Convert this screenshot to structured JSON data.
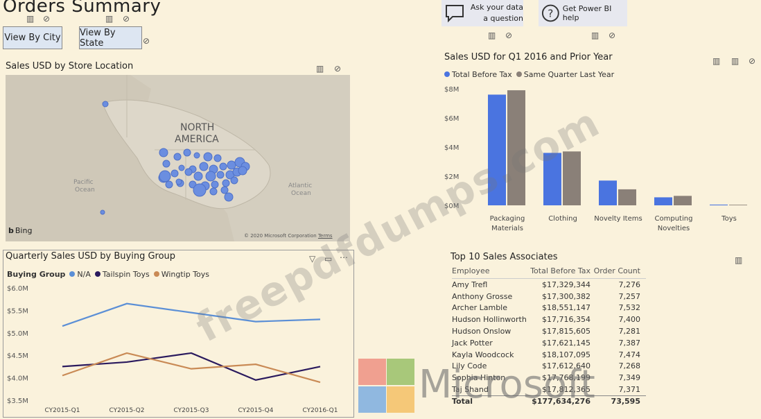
{
  "header": {
    "title": "Orders Summary",
    "view_by_city": "View By City",
    "view_by_state": "View By State",
    "ask_question": "Ask your data a question",
    "get_help": "Get Power BI help"
  },
  "map": {
    "title": "Sales USD by Store Location",
    "region_label_1": "NORTH",
    "region_label_2": "AMERICA",
    "pacific_1": "Pacific",
    "pacific_2": "Ocean",
    "atlantic_1": "Atlantic",
    "atlantic_2": "Ocean",
    "bing": "Bing",
    "copyright": "© 2020 Microsoft Corporation",
    "terms": "Terms"
  },
  "bar_chart": {
    "title": "Sales USD for Q1 2016 and Prior Year",
    "legend": [
      "Total Before Tax",
      "Same Quarter Last Year"
    ],
    "colors": [
      "#4a74e0",
      "#8a8078"
    ],
    "y_ticks": [
      "$8M",
      "$6M",
      "$4M",
      "$2M",
      "$0M"
    ],
    "categories": [
      [
        "Packaging",
        "Materials"
      ],
      [
        "Clothing"
      ],
      [
        "Novelty Items"
      ],
      [
        "Computing",
        "Novelties"
      ],
      [
        "Toys"
      ]
    ]
  },
  "line_chart": {
    "title": "Quarterly Sales USD by Buying Group",
    "legend_title": "Buying Group",
    "legend": [
      "N/A",
      "Tailspin Toys",
      "Wingtip Toys"
    ],
    "colors": [
      "#5b8fd6",
      "#2a1a5e",
      "#c98a55"
    ],
    "y_ticks": [
      "$6.0M",
      "$5.5M",
      "$5.0M",
      "$4.5M",
      "$4.0M",
      "$3.5M"
    ],
    "x_ticks": [
      "CY2015-Q1",
      "CY2015-Q2",
      "CY2015-Q3",
      "CY2015-Q4",
      "CY2016-Q1"
    ]
  },
  "table": {
    "title": "Top 10 Sales Associates",
    "headers": [
      "Employee",
      "Total Before Tax",
      "Order Count"
    ],
    "rows": [
      [
        "Amy Trefl",
        "$17,329,344",
        "7,276"
      ],
      [
        "Anthony Grosse",
        "$17,300,382",
        "7,257"
      ],
      [
        "Archer Lamble",
        "$18,551,147",
        "7,532"
      ],
      [
        "Hudson Hollinworth",
        "$17,716,354",
        "7,400"
      ],
      [
        "Hudson Onslow",
        "$17,815,605",
        "7,281"
      ],
      [
        "Jack Potter",
        "$17,621,145",
        "7,387"
      ],
      [
        "Kayla Woodcock",
        "$18,107,095",
        "7,474"
      ],
      [
        "Lily Code",
        "$17,612,640",
        "7,268"
      ],
      [
        "Sophia Hinton",
        "$17,768,199",
        "7,349"
      ],
      [
        "Taj Shand",
        "$17,812,365",
        "7,371"
      ]
    ],
    "total": [
      "Total",
      "$177,634,276",
      "73,595"
    ]
  },
  "logo": {
    "text": "Microsoft"
  },
  "watermark": "freepdfdumps.com",
  "chart_data": [
    {
      "type": "bar",
      "title": "Sales USD for Q1 2016 and Prior Year",
      "categories": [
        "Packaging Materials",
        "Clothing",
        "Novelty Items",
        "Computing Novelties",
        "Toys"
      ],
      "series": [
        {
          "name": "Total Before Tax",
          "values": [
            7.6,
            3.6,
            1.7,
            0.55,
            0.05
          ]
        },
        {
          "name": "Same Quarter Last Year",
          "values": [
            7.9,
            3.7,
            1.1,
            0.65,
            0.04
          ]
        }
      ],
      "ylabel": "",
      "xlabel": "",
      "ylim": [
        0,
        8
      ],
      "legend": "top-left"
    },
    {
      "type": "line",
      "title": "Quarterly Sales USD by Buying Group",
      "x": [
        "CY2015-Q1",
        "CY2015-Q2",
        "CY2015-Q3",
        "CY2015-Q4",
        "CY2016-Q1"
      ],
      "series": [
        {
          "name": "N/A",
          "values": [
            5.15,
            5.65,
            5.45,
            5.25,
            5.3
          ]
        },
        {
          "name": "Tailspin Toys",
          "values": [
            4.25,
            4.35,
            4.55,
            3.95,
            4.25
          ]
        },
        {
          "name": "Wingtip Toys",
          "values": [
            4.05,
            4.55,
            4.2,
            4.3,
            3.9
          ]
        }
      ],
      "ylim": [
        3.5,
        6.0
      ],
      "legend": "top-left"
    }
  ]
}
